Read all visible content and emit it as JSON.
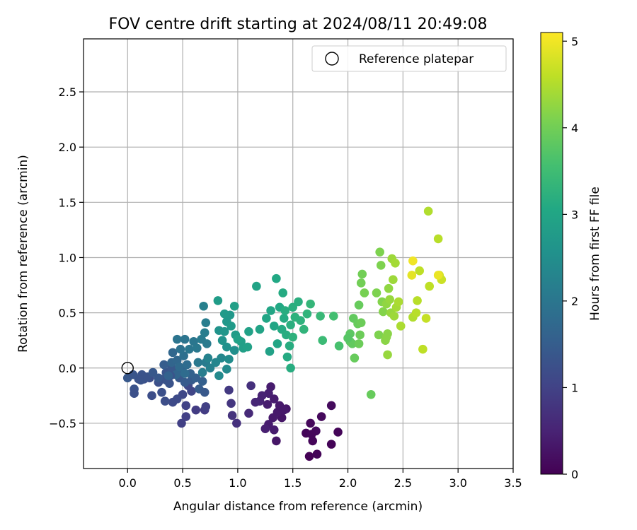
{
  "chart_data": {
    "type": "scatter",
    "title": "FOV centre drift starting at 2024/08/11 20:49:08",
    "xlabel": "Angular distance from reference (arcmin)",
    "ylabel": "Rotation from reference (arcmin)",
    "xlim": [
      -0.4,
      3.5
    ],
    "ylim": [
      -0.91,
      2.98
    ],
    "xticks": [
      0.0,
      0.5,
      1.0,
      1.5,
      2.0,
      2.5,
      3.0,
      3.5
    ],
    "xtick_labels": [
      "0.0",
      "0.5",
      "1.0",
      "1.5",
      "2.0",
      "2.5",
      "3.0",
      "3.5"
    ],
    "yticks": [
      -0.5,
      0.0,
      0.5,
      1.0,
      1.5,
      2.0,
      2.5
    ],
    "ytick_labels": [
      "−0.5",
      "0.0",
      "0.5",
      "1.0",
      "1.5",
      "2.0",
      "2.5"
    ],
    "grid": true,
    "legend": {
      "placement": "upper-right",
      "label": "Reference platepar"
    },
    "reference_point": {
      "x": 0.0,
      "y": 0.0
    },
    "colorbar": {
      "label": "Hours from first FF file",
      "colormap": "viridis",
      "range": [
        0,
        5.1
      ],
      "ticks": [
        0,
        1,
        2,
        3,
        4,
        5
      ],
      "tick_labels": [
        "0",
        "1",
        "2",
        "3",
        "4",
        "5"
      ]
    },
    "points": [
      [
        1.65,
        -0.8,
        0.02
      ],
      [
        1.72,
        -0.78,
        0.05
      ],
      [
        1.85,
        -0.69,
        0.04
      ],
      [
        1.68,
        -0.66,
        0.08
      ],
      [
        1.62,
        -0.59,
        0.06
      ],
      [
        1.66,
        -0.5,
        0.1
      ],
      [
        1.71,
        -0.57,
        0.12
      ],
      [
        1.76,
        -0.44,
        0.12
      ],
      [
        1.85,
        -0.34,
        0.14
      ],
      [
        1.91,
        -0.58,
        0.06
      ],
      [
        1.67,
        -0.6,
        0.09
      ],
      [
        1.44,
        -0.37,
        0.3
      ],
      [
        1.4,
        -0.45,
        0.3
      ],
      [
        1.36,
        -0.4,
        0.35
      ],
      [
        1.32,
        -0.45,
        0.35
      ],
      [
        1.35,
        -0.66,
        0.3
      ],
      [
        1.33,
        -0.56,
        0.4
      ],
      [
        1.28,
        -0.51,
        0.4
      ],
      [
        1.25,
        -0.55,
        0.45
      ],
      [
        1.3,
        -0.17,
        0.4
      ],
      [
        1.28,
        -0.23,
        0.45
      ],
      [
        1.22,
        -0.25,
        0.5
      ],
      [
        1.2,
        -0.3,
        0.5
      ],
      [
        1.16,
        -0.31,
        0.55
      ],
      [
        1.27,
        -0.33,
        0.4
      ],
      [
        1.33,
        -0.28,
        0.4
      ],
      [
        1.38,
        -0.34,
        0.35
      ],
      [
        1.42,
        -0.38,
        0.35
      ],
      [
        1.1,
        -0.41,
        0.6
      ],
      [
        1.12,
        -0.16,
        0.7
      ],
      [
        0.99,
        -0.5,
        0.7
      ],
      [
        0.95,
        -0.43,
        0.75
      ],
      [
        0.94,
        -0.32,
        0.8
      ],
      [
        0.92,
        -0.2,
        0.85
      ],
      [
        0.7,
        -0.38,
        0.9
      ],
      [
        0.71,
        -0.35,
        0.95
      ],
      [
        0.62,
        -0.38,
        0.9
      ],
      [
        0.53,
        -0.44,
        0.95
      ],
      [
        0.49,
        -0.5,
        0.95
      ],
      [
        0.53,
        -0.34,
        1.0
      ],
      [
        0.58,
        -0.21,
        1.05
      ],
      [
        0.55,
        -0.16,
        1.1
      ],
      [
        0.5,
        -0.24,
        1.1
      ],
      [
        0.45,
        -0.28,
        1.15
      ],
      [
        0.41,
        -0.31,
        1.15
      ],
      [
        0.34,
        -0.3,
        1.2
      ],
      [
        0.31,
        -0.22,
        1.25
      ],
      [
        0.38,
        -0.14,
        1.3
      ],
      [
        0.3,
        -0.1,
        1.3
      ],
      [
        0.35,
        -0.04,
        1.35
      ],
      [
        0.43,
        -0.03,
        1.35
      ],
      [
        0.4,
        0.0,
        1.4
      ],
      [
        0.47,
        -0.09,
        1.4
      ],
      [
        0.52,
        -0.13,
        1.45
      ],
      [
        0.58,
        -0.11,
        1.45
      ],
      [
        0.65,
        -0.19,
        1.5
      ],
      [
        0.7,
        -0.22,
        1.4
      ],
      [
        0.68,
        -0.12,
        1.55
      ],
      [
        0.62,
        -0.09,
        1.55
      ],
      [
        0.57,
        -0.05,
        1.6
      ],
      [
        0.5,
        -0.03,
        1.6
      ],
      [
        0.44,
        -0.06,
        1.65
      ],
      [
        0.39,
        -0.07,
        1.35
      ],
      [
        0.35,
        -0.11,
        1.3
      ],
      [
        0.28,
        -0.13,
        1.25
      ],
      [
        0.22,
        -0.25,
        1.2
      ],
      [
        0.2,
        -0.09,
        1.2
      ],
      [
        0.15,
        -0.1,
        1.25
      ],
      [
        0.13,
        -0.06,
        1.3
      ],
      [
        0.1,
        -0.1,
        1.3
      ],
      [
        0.06,
        -0.19,
        1.3
      ],
      [
        0.06,
        -0.23,
        1.25
      ],
      [
        0.0,
        -0.09,
        1.4
      ],
      [
        0.05,
        -0.06,
        1.35
      ],
      [
        0.12,
        -0.11,
        1.3
      ],
      [
        0.18,
        -0.08,
        1.3
      ],
      [
        0.23,
        -0.04,
        1.4
      ],
      [
        0.28,
        -0.09,
        1.4
      ],
      [
        0.33,
        0.03,
        1.5
      ],
      [
        0.37,
        -0.07,
        1.6
      ],
      [
        0.4,
        0.05,
        1.65
      ],
      [
        0.41,
        0.14,
        1.7
      ],
      [
        0.45,
        0.07,
        1.7
      ],
      [
        0.47,
        0.01,
        1.75
      ],
      [
        0.52,
        -0.05,
        1.8
      ],
      [
        0.54,
        0.03,
        1.8
      ],
      [
        0.51,
        0.11,
        1.85
      ],
      [
        0.48,
        0.17,
        1.9
      ],
      [
        0.45,
        0.26,
        1.95
      ],
      [
        0.52,
        0.26,
        1.95
      ],
      [
        0.56,
        0.17,
        2.0
      ],
      [
        0.6,
        0.24,
        2.0
      ],
      [
        0.63,
        0.18,
        2.05
      ],
      [
        0.67,
        0.26,
        2.1
      ],
      [
        0.72,
        0.22,
        2.1
      ],
      [
        0.7,
        0.32,
        2.15
      ],
      [
        0.71,
        0.41,
        2.15
      ],
      [
        0.69,
        0.56,
        2.2
      ],
      [
        0.64,
        0.05,
        2.05
      ],
      [
        0.71,
        0.05,
        2.1
      ],
      [
        0.68,
        -0.04,
        2.15
      ],
      [
        0.75,
        0.0,
        2.2
      ],
      [
        0.73,
        0.09,
        2.25
      ],
      [
        0.8,
        0.05,
        2.3
      ],
      [
        0.85,
        0.09,
        2.35
      ],
      [
        0.83,
        -0.07,
        2.4
      ],
      [
        0.9,
        -0.01,
        2.4
      ],
      [
        0.92,
        0.08,
        2.45
      ],
      [
        0.97,
        0.16,
        2.5
      ],
      [
        0.9,
        0.19,
        2.55
      ],
      [
        0.86,
        0.25,
        2.6
      ],
      [
        0.83,
        0.34,
        2.6
      ],
      [
        0.88,
        0.33,
        2.65
      ],
      [
        0.9,
        0.42,
        2.7
      ],
      [
        0.93,
        0.48,
        2.7
      ],
      [
        0.88,
        0.49,
        2.75
      ],
      [
        0.82,
        0.61,
        2.8
      ],
      [
        0.97,
        0.56,
        2.85
      ],
      [
        0.94,
        0.38,
        2.75
      ],
      [
        0.98,
        0.3,
        2.8
      ],
      [
        1.03,
        0.24,
        2.85
      ],
      [
        1.05,
        0.18,
        2.85
      ],
      [
        1.09,
        0.19,
        2.9
      ],
      [
        1.0,
        0.26,
        2.9
      ],
      [
        1.1,
        0.33,
        2.9
      ],
      [
        1.17,
        0.74,
        2.95
      ],
      [
        1.2,
        0.35,
        2.95
      ],
      [
        1.26,
        0.45,
        3.0
      ],
      [
        1.3,
        0.52,
        3.0
      ],
      [
        1.29,
        0.15,
        2.9
      ],
      [
        1.33,
        0.38,
        3.0
      ],
      [
        1.35,
        0.81,
        3.05
      ],
      [
        1.38,
        0.55,
        3.05
      ],
      [
        1.36,
        0.22,
        3.0
      ],
      [
        1.4,
        0.35,
        3.1
      ],
      [
        1.42,
        0.45,
        3.1
      ],
      [
        1.43,
        0.52,
        3.15
      ],
      [
        1.41,
        0.68,
        3.1
      ],
      [
        1.45,
        0.1,
        3.1
      ],
      [
        1.44,
        0.3,
        3.15
      ],
      [
        1.47,
        0.2,
        3.15
      ],
      [
        1.48,
        0.39,
        3.2
      ],
      [
        1.5,
        0.55,
        3.2
      ],
      [
        1.52,
        0.46,
        3.25
      ],
      [
        1.55,
        0.6,
        3.2
      ],
      [
        1.5,
        0.28,
        3.25
      ],
      [
        1.57,
        0.43,
        3.25
      ],
      [
        1.6,
        0.35,
        3.3
      ],
      [
        1.63,
        0.49,
        3.3
      ],
      [
        1.66,
        0.58,
        3.35
      ],
      [
        1.75,
        0.47,
        3.4
      ],
      [
        1.77,
        0.25,
        3.45
      ],
      [
        1.87,
        0.47,
        3.55
      ],
      [
        1.48,
        0.0,
        3.15
      ],
      [
        1.92,
        0.2,
        3.6
      ],
      [
        2.02,
        0.31,
        3.8
      ],
      [
        2.02,
        0.24,
        3.8
      ],
      [
        2.04,
        0.22,
        3.85
      ],
      [
        2.05,
        0.45,
        3.85
      ],
      [
        2.06,
        0.09,
        3.9
      ],
      [
        2.09,
        0.4,
        3.9
      ],
      [
        2.1,
        0.57,
        3.9
      ],
      [
        2.11,
        0.3,
        3.95
      ],
      [
        2.1,
        0.22,
        3.95
      ],
      [
        2.12,
        0.77,
        4.0
      ],
      [
        2.13,
        0.85,
        4.0
      ],
      [
        2.15,
        0.68,
        4.05
      ],
      [
        2.21,
        -0.24,
        3.9
      ],
      [
        2.26,
        0.68,
        4.1
      ],
      [
        2.28,
        0.3,
        4.1
      ],
      [
        2.29,
        1.05,
        4.1
      ],
      [
        2.3,
        0.93,
        4.1
      ],
      [
        2.31,
        0.6,
        4.15
      ],
      [
        2.32,
        0.51,
        4.15
      ],
      [
        2.34,
        0.25,
        4.2
      ],
      [
        2.35,
        0.28,
        4.2
      ],
      [
        2.36,
        0.31,
        4.2
      ],
      [
        2.35,
        0.58,
        4.25
      ],
      [
        2.37,
        0.72,
        4.25
      ],
      [
        2.38,
        0.62,
        4.3
      ],
      [
        2.36,
        0.12,
        4.3
      ],
      [
        2.39,
        0.5,
        4.3
      ],
      [
        2.4,
        0.99,
        4.35
      ],
      [
        2.41,
        0.8,
        4.35
      ],
      [
        2.42,
        0.47,
        4.35
      ],
      [
        2.43,
        0.95,
        4.4
      ],
      [
        2.44,
        0.55,
        4.4
      ],
      [
        2.46,
        0.6,
        4.45
      ],
      [
        2.48,
        0.38,
        4.45
      ],
      [
        2.59,
        0.46,
        4.5
      ],
      [
        2.62,
        0.5,
        4.55
      ],
      [
        2.63,
        0.61,
        4.55
      ],
      [
        2.65,
        0.88,
        4.6
      ],
      [
        2.68,
        0.17,
        4.6
      ],
      [
        2.71,
        0.45,
        4.65
      ],
      [
        2.73,
        1.42,
        4.5
      ],
      [
        2.74,
        0.74,
        4.6
      ],
      [
        2.82,
        1.17,
        4.55
      ],
      [
        2.83,
        0.84,
        4.75
      ],
      [
        2.85,
        0.8,
        4.7
      ],
      [
        2.58,
        0.84,
        4.9
      ],
      [
        2.59,
        0.97,
        5.0
      ],
      [
        2.82,
        0.84,
        4.95
      ],
      [
        2.12,
        0.41,
        3.95
      ],
      [
        2.0,
        0.27,
        3.75
      ]
    ]
  }
}
